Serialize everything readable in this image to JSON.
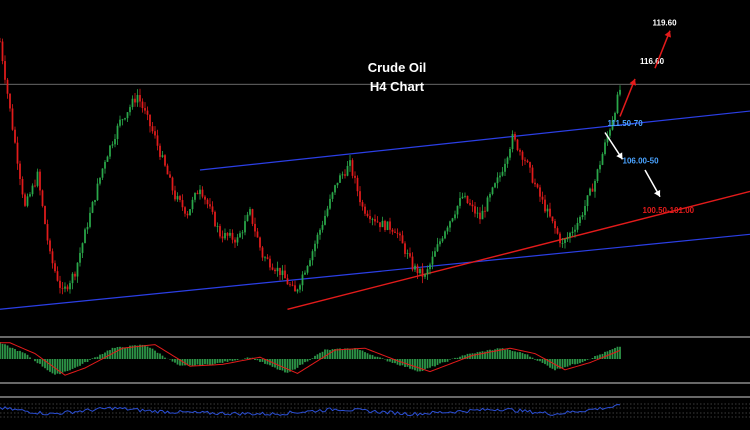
{
  "chart_data": {
    "type": "candlestick",
    "title": "Crude Oil",
    "subtitle": "H4 Chart",
    "ylim": [
      93,
      121
    ],
    "num_bars": 300,
    "close_path": [
      {
        "bar": 0,
        "price": 119.0
      },
      {
        "bar": 5,
        "price": 111.0
      },
      {
        "bar": 10,
        "price": 103.5
      },
      {
        "bar": 15,
        "price": 106.5
      },
      {
        "bar": 20,
        "price": 99.0
      },
      {
        "bar": 25,
        "price": 95.5
      },
      {
        "bar": 30,
        "price": 97.5
      },
      {
        "bar": 35,
        "price": 102.0
      },
      {
        "bar": 42,
        "price": 108.0
      },
      {
        "bar": 48,
        "price": 111.5
      },
      {
        "bar": 55,
        "price": 114.0
      },
      {
        "bar": 62,
        "price": 110.0
      },
      {
        "bar": 70,
        "price": 104.5
      },
      {
        "bar": 75,
        "price": 103.0
      },
      {
        "bar": 80,
        "price": 105.5
      },
      {
        "bar": 88,
        "price": 101.0
      },
      {
        "bar": 95,
        "price": 100.5
      },
      {
        "bar": 100,
        "price": 103.0
      },
      {
        "bar": 105,
        "price": 99.0
      },
      {
        "bar": 112,
        "price": 97.5
      },
      {
        "bar": 118,
        "price": 95.5
      },
      {
        "bar": 125,
        "price": 99.5
      },
      {
        "bar": 135,
        "price": 106.0
      },
      {
        "bar": 140,
        "price": 107.5
      },
      {
        "bar": 145,
        "price": 103.5
      },
      {
        "bar": 152,
        "price": 102.0
      },
      {
        "bar": 158,
        "price": 101.5
      },
      {
        "bar": 165,
        "price": 98.0
      },
      {
        "bar": 170,
        "price": 97.0
      },
      {
        "bar": 178,
        "price": 101.5
      },
      {
        "bar": 185,
        "price": 104.5
      },
      {
        "bar": 192,
        "price": 102.5
      },
      {
        "bar": 200,
        "price": 106.5
      },
      {
        "bar": 205,
        "price": 110.0
      },
      {
        "bar": 210,
        "price": 108.0
      },
      {
        "bar": 215,
        "price": 105.0
      },
      {
        "bar": 220,
        "price": 102.5
      },
      {
        "bar": 225,
        "price": 100.0
      },
      {
        "bar": 232,
        "price": 102.5
      },
      {
        "bar": 238,
        "price": 106.0
      },
      {
        "bar": 244,
        "price": 111.0
      },
      {
        "bar": 248,
        "price": 114.5
      }
    ],
    "indicator_histogram": [
      {
        "bar": 0,
        "value": 0.9
      },
      {
        "bar": 10,
        "value": 0.3
      },
      {
        "bar": 22,
        "value": -0.9
      },
      {
        "bar": 30,
        "value": -0.5
      },
      {
        "bar": 45,
        "value": 0.6
      },
      {
        "bar": 58,
        "value": 0.8
      },
      {
        "bar": 72,
        "value": -0.4
      },
      {
        "bar": 85,
        "value": -0.3
      },
      {
        "bar": 100,
        "value": 0.1
      },
      {
        "bar": 115,
        "value": -0.8
      },
      {
        "bar": 130,
        "value": 0.5
      },
      {
        "bar": 142,
        "value": 0.6
      },
      {
        "bar": 155,
        "value": -0.1
      },
      {
        "bar": 168,
        "value": -0.7
      },
      {
        "bar": 185,
        "value": 0.2
      },
      {
        "bar": 200,
        "value": 0.6
      },
      {
        "bar": 210,
        "value": 0.3
      },
      {
        "bar": 222,
        "value": -0.6
      },
      {
        "bar": 232,
        "value": -0.2
      },
      {
        "bar": 248,
        "value": 0.7
      }
    ],
    "oscillator": [
      {
        "bar": 0,
        "value": 0.6
      },
      {
        "bar": 20,
        "value": 0.3
      },
      {
        "bar": 45,
        "value": 0.6
      },
      {
        "bar": 60,
        "value": 0.45
      },
      {
        "bar": 80,
        "value": 0.35
      },
      {
        "bar": 110,
        "value": 0.3
      },
      {
        "bar": 135,
        "value": 0.55
      },
      {
        "bar": 165,
        "value": 0.3
      },
      {
        "bar": 200,
        "value": 0.55
      },
      {
        "bar": 222,
        "value": 0.3
      },
      {
        "bar": 248,
        "value": 0.7
      }
    ],
    "channel_upper": {
      "from": {
        "bar": 80,
        "price": 107.0
      },
      "to": {
        "bar": 300,
        "price": 112.5
      }
    },
    "channel_lower": {
      "from": {
        "bar": 0,
        "price": 94.0
      },
      "to": {
        "bar": 300,
        "price": 101.0
      }
    },
    "trendline_red": {
      "from": {
        "bar": 115,
        "price": 94.0
      },
      "to": {
        "bar": 300,
        "price": 105.0
      }
    },
    "horizontal_level": 115.0,
    "annotations": [
      {
        "text": "119.60",
        "price": 120.5,
        "bar": 261,
        "color": "#ffffff"
      },
      {
        "text": "116.60",
        "price": 116.9,
        "bar": 256,
        "color": "#ffffff"
      },
      {
        "text": "111.50-70",
        "price": 111.1,
        "bar": 243,
        "color": "#4aa3ff"
      },
      {
        "text": "106.00-50",
        "price": 107.6,
        "bar": 249,
        "color": "#4aa3ff"
      },
      {
        "text": "100.50-101.00",
        "price": 103.0,
        "bar": 257,
        "color": "#e21b1b"
      }
    ],
    "arrows": [
      {
        "from": {
          "bar": 248,
          "price": 112.0
        },
        "to": {
          "bar": 254,
          "price": 115.5
        },
        "color": "#e21b1b"
      },
      {
        "from": {
          "bar": 262,
          "price": 116.5
        },
        "to": {
          "bar": 268,
          "price": 120.0
        },
        "color": "#e21b1b"
      },
      {
        "from": {
          "bar": 242,
          "price": 110.5
        },
        "to": {
          "bar": 249,
          "price": 108.0
        },
        "color": "#ffffff"
      },
      {
        "from": {
          "bar": 258,
          "price": 107.0
        },
        "to": {
          "bar": 264,
          "price": 104.5
        },
        "color": "#ffffff"
      }
    ],
    "colors": {
      "background": "#000000",
      "bull": "#2aa84a",
      "bear": "#e21b1b",
      "channel": "#2b3fe6",
      "trendline": "#e21b1b",
      "level": "#8a8a8a",
      "hist_pos": "#2e9a4a",
      "hist_neg": "#2e9a4a",
      "hist_line": "#e21b1b",
      "osc_line": "#2b4fd6",
      "separator": "#cfcfcf"
    }
  }
}
